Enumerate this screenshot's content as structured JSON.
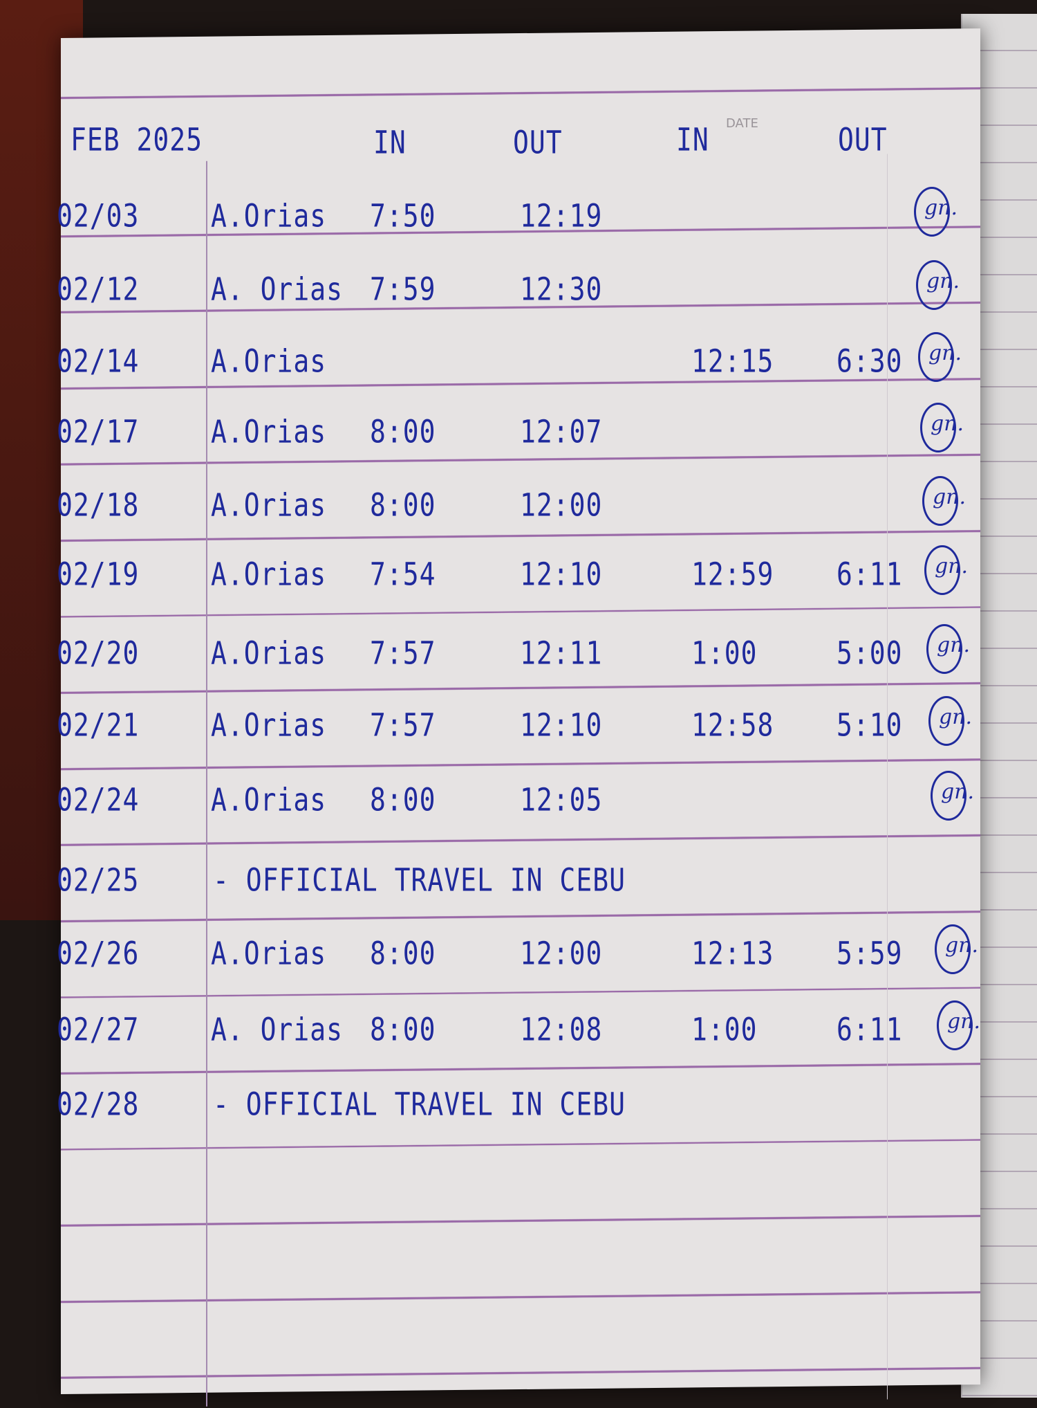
{
  "header": {
    "month": "FEB 2025",
    "in1": "IN",
    "out1": "OUT",
    "in2": "IN",
    "out2": "OUT",
    "printed_date_label": "DATE"
  },
  "rows": [
    {
      "date": "02/03",
      "name": "A.Orias",
      "in1": "7:50",
      "out1": "12:19",
      "in2": "",
      "out2": "",
      "signature": "gn."
    },
    {
      "date": "02/12",
      "name": "A. Orias",
      "in1": "7:59",
      "out1": "12:30",
      "in2": "",
      "out2": "",
      "signature": "gn."
    },
    {
      "date": "02/14",
      "name": "A.Orias",
      "in1": "",
      "out1": "",
      "in2": "12:15",
      "out2": "6:30",
      "signature": "gn."
    },
    {
      "date": "02/17",
      "name": "A.Orias",
      "in1": "8:00",
      "out1": "12:07",
      "in2": "",
      "out2": "",
      "signature": "gn."
    },
    {
      "date": "02/18",
      "name": "A.Orias",
      "in1": "8:00",
      "out1": "12:00",
      "in2": "",
      "out2": "",
      "signature": "gn."
    },
    {
      "date": "02/19",
      "name": "A.Orias",
      "in1": "7:54",
      "out1": "12:10",
      "in2": "12:59",
      "out2": "6:11",
      "signature": "gn."
    },
    {
      "date": "02/20",
      "name": "A.Orias",
      "in1": "7:57",
      "out1": "12:11",
      "in2": "1:00",
      "out2": "5:00",
      "signature": "gn."
    },
    {
      "date": "02/21",
      "name": "A.Orias",
      "in1": "7:57",
      "out1": "12:10",
      "in2": "12:58",
      "out2": "5:10",
      "signature": "gn."
    },
    {
      "date": "02/24",
      "name": "A.Orias",
      "in1": "8:00",
      "out1": "12:05",
      "in2": "",
      "out2": "",
      "signature": "gn."
    },
    {
      "date": "02/25",
      "note": "- OFFICIAL TRAVEL IN CEBU"
    },
    {
      "date": "02/26",
      "name": "A.Orias",
      "in1": "8:00",
      "out1": "12:00",
      "in2": "12:13",
      "out2": "5:59",
      "signature": "gn."
    },
    {
      "date": "02/27",
      "name": "A. Orias",
      "in1": "8:00",
      "out1": "12:08",
      "in2": "1:00",
      "out2": "6:11",
      "signature": "gn."
    },
    {
      "date": "02/28",
      "note": "- OFFICIAL TRAVEL IN CEBU"
    }
  ],
  "colors": {
    "ink": "#1f2a9c",
    "rule": "#9a6aa8",
    "paper": "#e6e3e3"
  }
}
